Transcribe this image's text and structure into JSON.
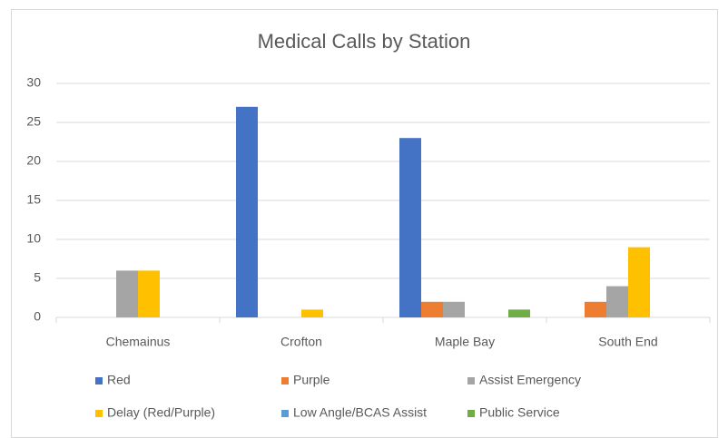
{
  "chart_data": {
    "type": "bar",
    "title": "Medical Calls by Station",
    "categories": [
      "Chemainus",
      "Crofton",
      "Maple Bay",
      "South End"
    ],
    "series": [
      {
        "name": "Red",
        "color": "#4472c4",
        "values": [
          0,
          27,
          23,
          0
        ]
      },
      {
        "name": "Purple",
        "color": "#ed7d31",
        "values": [
          0,
          0,
          2,
          2
        ]
      },
      {
        "name": "Assist Emergency",
        "color": "#a5a5a5",
        "values": [
          6,
          0,
          2,
          4
        ]
      },
      {
        "name": "Delay (Red/Purple)",
        "color": "#ffc000",
        "values": [
          6,
          1,
          0,
          9
        ]
      },
      {
        "name": "Low Angle/BCAS Assist",
        "color": "#5b9bd5",
        "values": [
          0,
          0,
          0,
          0
        ]
      },
      {
        "name": "Public Service",
        "color": "#70ad47",
        "values": [
          0,
          0,
          1,
          0
        ]
      }
    ],
    "ylim": [
      0,
      30
    ],
    "yticks": [
      0,
      5,
      10,
      15,
      20,
      25,
      30
    ],
    "grid": true,
    "legend": "bottom"
  }
}
